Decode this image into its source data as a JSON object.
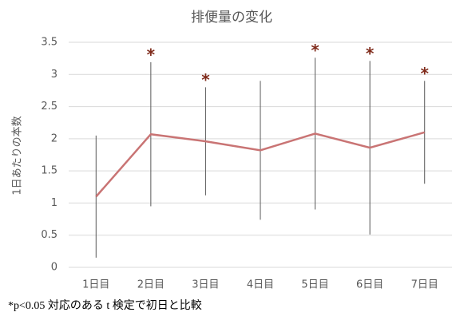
{
  "chart_data": {
    "type": "line",
    "title": "排便量の変化",
    "ylabel": "1日あたりの本数",
    "categories": [
      "1日目",
      "2日目",
      "3日目",
      "4日目",
      "5日目",
      "6日目",
      "7日目"
    ],
    "series": [
      {
        "values": [
          1.1,
          2.07,
          1.96,
          1.82,
          2.08,
          1.86,
          2.1
        ],
        "errors": [
          0.95,
          1.12,
          0.84,
          1.08,
          1.18,
          1.35,
          0.8
        ],
        "color": "#c97474"
      }
    ],
    "significance": [
      null,
      "*",
      "*",
      null,
      "*",
      "*",
      "*"
    ],
    "ylim": [
      0,
      3.5
    ],
    "yticks": [
      0,
      0.5,
      1,
      1.5,
      2,
      2.5,
      3,
      3.5
    ],
    "grid": true,
    "annotation": "*p<0.05 対応のある t 検定で初日と比較"
  }
}
